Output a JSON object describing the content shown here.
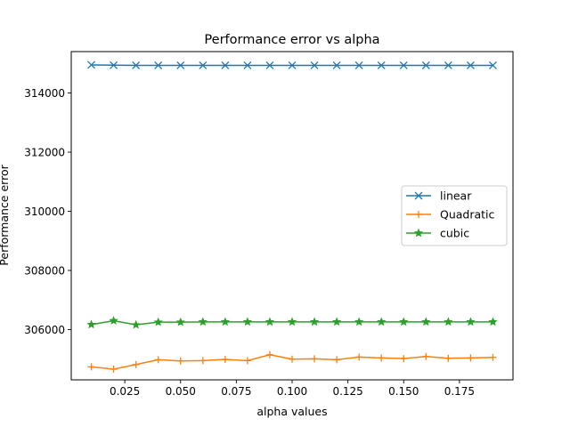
{
  "chart_data": {
    "type": "line",
    "title": "Performance error vs alpha",
    "xlabel": "alpha values",
    "ylabel": "Performance error",
    "xlim": [
      0.001,
      0.199
    ],
    "ylim": [
      304300,
      315400
    ],
    "xticks": [
      0.025,
      0.05,
      0.075,
      0.1,
      0.125,
      0.15,
      0.175
    ],
    "xtick_labels": [
      "0.025",
      "0.050",
      "0.075",
      "0.100",
      "0.125",
      "0.150",
      "0.175"
    ],
    "yticks": [
      306000,
      308000,
      310000,
      312000,
      314000
    ],
    "ytick_labels": [
      "306000",
      "308000",
      "310000",
      "312000",
      "314000"
    ],
    "grid": false,
    "legend_position": "center-right",
    "x": [
      0.01,
      0.02,
      0.03,
      0.04,
      0.05,
      0.06,
      0.07,
      0.08,
      0.09,
      0.1,
      0.11,
      0.12,
      0.13,
      0.14,
      0.15,
      0.16,
      0.17,
      0.18,
      0.19
    ],
    "series": [
      {
        "name": "linear",
        "color": "#1f77b4",
        "marker": "x",
        "values": [
          314950,
          314940,
          314935,
          314935,
          314935,
          314935,
          314935,
          314935,
          314935,
          314935,
          314935,
          314935,
          314935,
          314935,
          314935,
          314935,
          314935,
          314935,
          314935
        ]
      },
      {
        "name": "Quadratic",
        "color": "#ff7f0e",
        "marker": "+",
        "values": [
          304740,
          304660,
          304820,
          304980,
          304940,
          304950,
          304990,
          304950,
          305150,
          305000,
          305010,
          304980,
          305070,
          305040,
          305020,
          305090,
          305030,
          305040,
          305060
        ]
      },
      {
        "name": "cubic",
        "color": "#2ca02c",
        "marker": "*",
        "values": [
          306170,
          306300,
          306160,
          306250,
          306250,
          306260,
          306260,
          306260,
          306260,
          306260,
          306260,
          306260,
          306260,
          306260,
          306260,
          306260,
          306260,
          306260,
          306260
        ]
      }
    ]
  }
}
